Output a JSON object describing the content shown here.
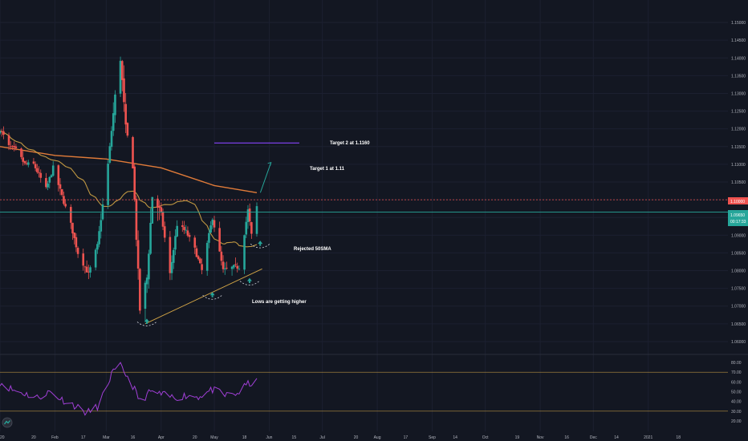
{
  "chart_data": {
    "type": "candlestick",
    "y_axis": {
      "range": [
        1.0575,
        1.1525
      ],
      "ticks": [
        "1.15000",
        "1.14500",
        "1.14000",
        "1.13500",
        "1.13000",
        "1.12500",
        "1.12000",
        "1.11500",
        "1.11000",
        "1.10500",
        "1.10000",
        "1.09500",
        "1.09000",
        "1.08500",
        "1.08000",
        "1.07500",
        "1.07000",
        "1.06500",
        "1.06000"
      ]
    },
    "x_axis": {
      "ticks": [
        "2020",
        "20",
        "Feb",
        "17",
        "Mar",
        "16",
        "Apr",
        "20",
        "May",
        "18",
        "Jun",
        "15",
        "Jul",
        "20",
        "Aug",
        "17",
        "Sep",
        "14",
        "Oct",
        "19",
        "Nov",
        "16",
        "Dec",
        "14",
        "2021",
        "18"
      ]
    },
    "price_labels": {
      "resistance": "1.10000",
      "last_price": "1.09650",
      "countdown": "00:17:33"
    },
    "colors": {
      "up": "#26a69a",
      "down": "#ef5350",
      "sma50": "#d4a646",
      "sma200": "#e07b39",
      "target2": "#7b3fe4",
      "resistance_line": "#ef5350",
      "last_price_line": "#26a69a",
      "trendline": "#d4a646",
      "rsi": "#a03fd6",
      "background": "#131722"
    },
    "annotations": {
      "target2": "Target 2 at 1.1160",
      "target1": "Target 1 at 1.11",
      "rejected": "Rejected 50SMA",
      "lows": "Lows are getting higher"
    },
    "price_anchors": [
      [
        "2020-01-01",
        1.12
      ],
      [
        "2020-01-06",
        1.115
      ],
      [
        "2020-01-10",
        1.114
      ],
      [
        "2020-01-15",
        1.11
      ],
      [
        "2020-01-20",
        1.11
      ],
      [
        "2020-01-27",
        1.103
      ],
      [
        "2020-01-31",
        1.109
      ],
      [
        "2020-02-05",
        1.101
      ],
      [
        "2020-02-10",
        1.093
      ],
      [
        "2020-02-14",
        1.085
      ],
      [
        "2020-02-20",
        1.079
      ],
      [
        "2020-02-25",
        1.087
      ],
      [
        "2020-03-02",
        1.11
      ],
      [
        "2020-03-06",
        1.129
      ],
      [
        "2020-03-09",
        1.14
      ],
      [
        "2020-03-12",
        1.12
      ],
      [
        "2020-03-16",
        1.11
      ],
      [
        "2020-03-20",
        1.069
      ],
      [
        "2020-03-24",
        1.078
      ],
      [
        "2020-03-27",
        1.101
      ],
      [
        "2020-04-01",
        1.096
      ],
      [
        "2020-04-06",
        1.079
      ],
      [
        "2020-04-10",
        1.093
      ],
      [
        "2020-04-15",
        1.091
      ],
      [
        "2020-04-20",
        1.086
      ],
      [
        "2020-04-24",
        1.08
      ],
      [
        "2020-04-30",
        1.095
      ],
      [
        "2020-05-06",
        1.08
      ],
      [
        "2020-05-12",
        1.081
      ],
      [
        "2020-05-15",
        1.081
      ],
      [
        "2020-05-20",
        1.097
      ],
      [
        "2020-05-22",
        1.09
      ],
      [
        "2020-05-25",
        1.098
      ]
    ],
    "rsi": {
      "ticks": [
        "80.00",
        "70.00",
        "60.00",
        "50.00",
        "40.00",
        "30.00",
        "20.00"
      ],
      "levels": [
        70,
        30
      ],
      "anchors": [
        [
          "2020-01-01",
          60
        ],
        [
          "2020-01-08",
          52
        ],
        [
          "2020-01-15",
          48
        ],
        [
          "2020-01-22",
          44
        ],
        [
          "2020-01-29",
          50
        ],
        [
          "2020-02-05",
          42
        ],
        [
          "2020-02-12",
          36
        ],
        [
          "2020-02-19",
          28
        ],
        [
          "2020-02-26",
          36
        ],
        [
          "2020-03-04",
          68
        ],
        [
          "2020-03-09",
          76
        ],
        [
          "2020-03-12",
          68
        ],
        [
          "2020-03-16",
          56
        ],
        [
          "2020-03-20",
          40
        ],
        [
          "2020-03-26",
          50
        ],
        [
          "2020-04-01",
          47
        ],
        [
          "2020-04-08",
          44
        ],
        [
          "2020-04-15",
          46
        ],
        [
          "2020-04-22",
          45
        ],
        [
          "2020-04-30",
          52
        ],
        [
          "2020-05-07",
          46
        ],
        [
          "2020-05-14",
          48
        ],
        [
          "2020-05-20",
          58
        ],
        [
          "2020-05-25",
          60
        ]
      ]
    }
  }
}
